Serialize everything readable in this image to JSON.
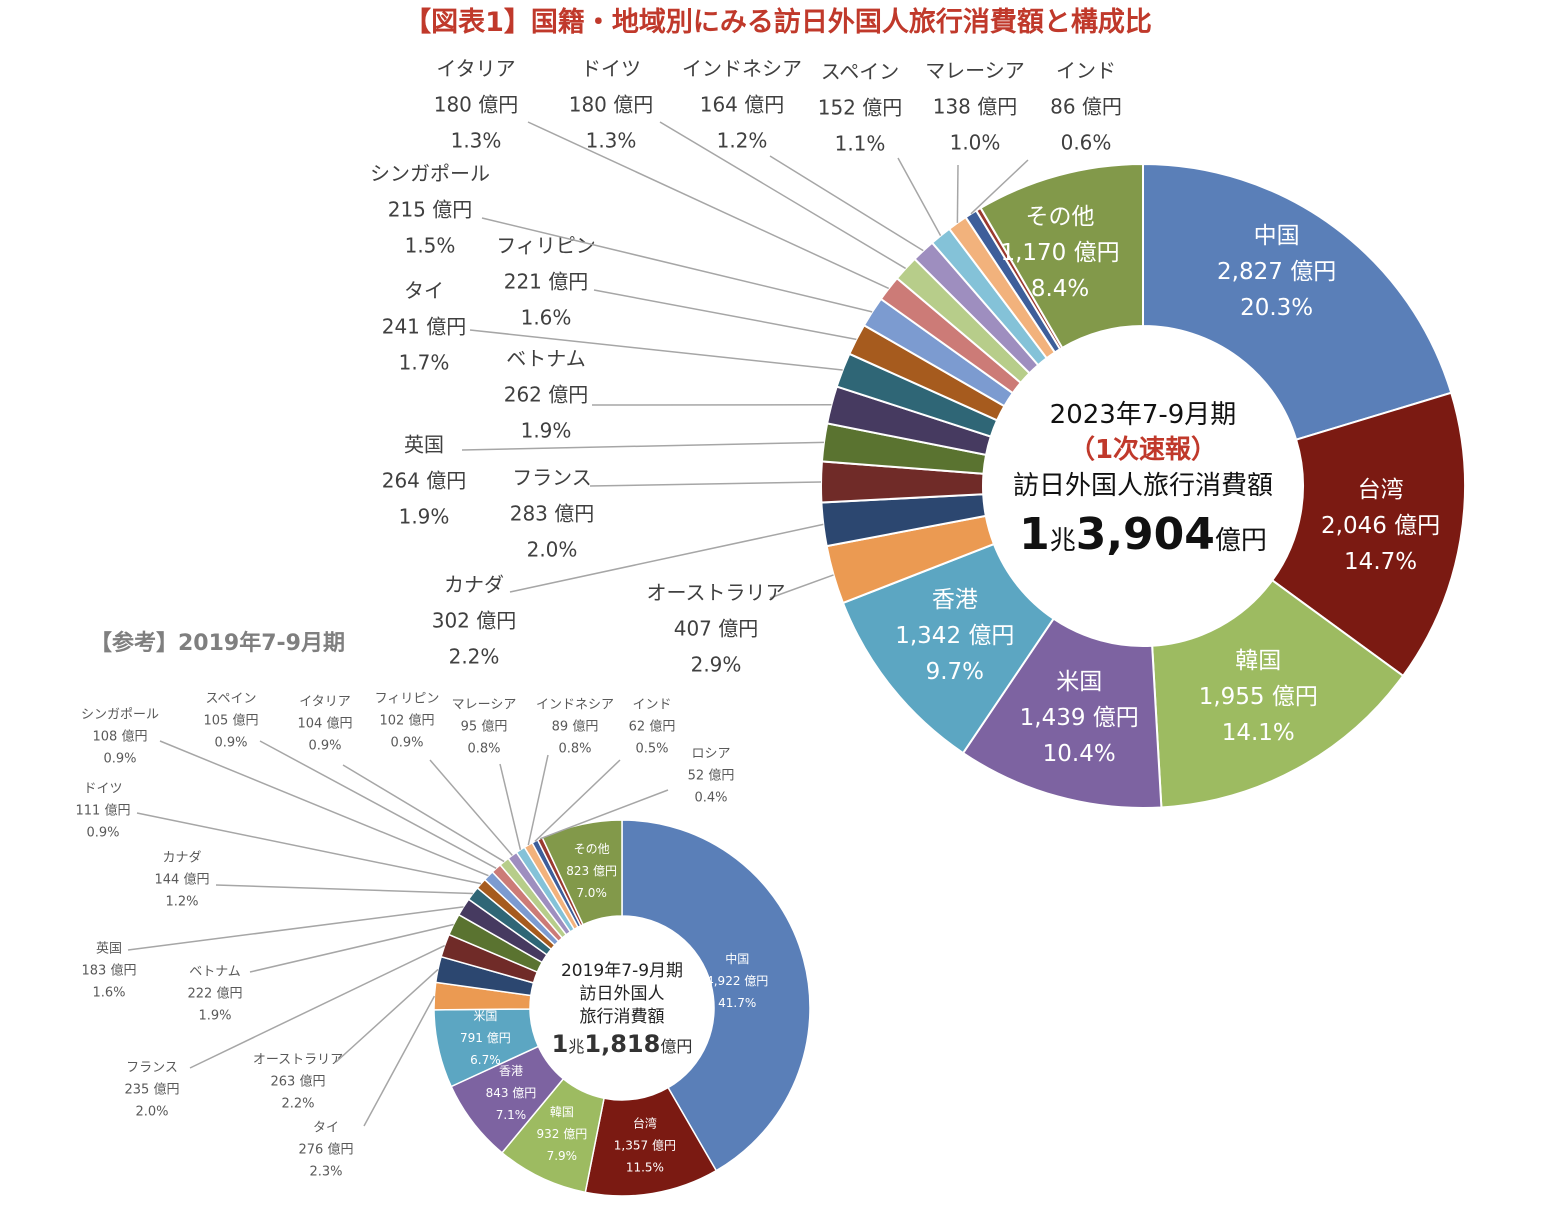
{
  "header": {
    "title": "【図表1】国籍・地域別にみる訪日外国人旅行消費額と構成比",
    "ref_title": "【参考】2019年7-9月期"
  },
  "chart_data": [
    {
      "type": "donut",
      "unit": "億円",
      "center": {
        "period": "2023年7-9月期",
        "note": "（1次速報）",
        "caption": "訪日外国人旅行消費額",
        "total_big1": "1",
        "total_unit1": "兆",
        "total_big2": "3,904",
        "total_unit2": "億円"
      },
      "slices": [
        {
          "name": "中国",
          "value": 2827,
          "value_label": "2,827 億円",
          "pct": "20.3%",
          "color": "#5a7fb8"
        },
        {
          "name": "台湾",
          "value": 2046,
          "value_label": "2,046 億円",
          "pct": "14.7%",
          "color": "#7b1a12"
        },
        {
          "name": "韓国",
          "value": 1955,
          "value_label": "1,955 億円",
          "pct": "14.1%",
          "color": "#9dbb61"
        },
        {
          "name": "米国",
          "value": 1439,
          "value_label": "1,439 億円",
          "pct": "10.4%",
          "color": "#7d63a1"
        },
        {
          "name": "香港",
          "value": 1342,
          "value_label": "1,342 億円",
          "pct": "9.7%",
          "color": "#5ca6c2"
        },
        {
          "name": "オーストラリア",
          "value": 407,
          "value_label": "407 億円",
          "pct": "2.9%",
          "color": "#eb9a52"
        },
        {
          "name": "カナダ",
          "value": 302,
          "value_label": "302 億円",
          "pct": "2.2%",
          "color": "#2c4770"
        },
        {
          "name": "フランス",
          "value": 283,
          "value_label": "283 億円",
          "pct": "2.0%",
          "color": "#702b28"
        },
        {
          "name": "英国",
          "value": 264,
          "value_label": "264 億円",
          "pct": "1.9%",
          "color": "#5a7330"
        },
        {
          "name": "ベトナム",
          "value": 262,
          "value_label": "262 億円",
          "pct": "1.9%",
          "color": "#463a60"
        },
        {
          "name": "タイ",
          "value": 241,
          "value_label": "241 億円",
          "pct": "1.7%",
          "color": "#2f6676"
        },
        {
          "name": "フィリピン",
          "value": 221,
          "value_label": "221 億円",
          "pct": "1.6%",
          "color": "#a65b1e"
        },
        {
          "name": "シンガポール",
          "value": 215,
          "value_label": "215 億円",
          "pct": "1.5%",
          "color": "#7c9bd0"
        },
        {
          "name": "イタリア",
          "value": 180,
          "value_label": "180 億円",
          "pct": "1.3%",
          "color": "#cc7b77"
        },
        {
          "name": "ドイツ",
          "value": 180,
          "value_label": "180 億円",
          "pct": "1.3%",
          "color": "#b7cd8a"
        },
        {
          "name": "インドネシア",
          "value": 164,
          "value_label": "164 億円",
          "pct": "1.2%",
          "color": "#9e8ebf"
        },
        {
          "name": "スペイン",
          "value": 152,
          "value_label": "152 億円",
          "pct": "1.1%",
          "color": "#84c2d8"
        },
        {
          "name": "マレーシア",
          "value": 138,
          "value_label": "138 億円",
          "pct": "1.0%",
          "color": "#f2b27c"
        },
        {
          "name": "インド",
          "value": 86,
          "value_label": "86 億円",
          "pct": "0.6%",
          "color": "#3e5e9a"
        },
        {
          "name": "",
          "value": 35,
          "value_label": "",
          "pct": "",
          "color": "#9a3a30"
        },
        {
          "name": "その他",
          "value": 1170,
          "value_label": "1,170 億円",
          "pct": "8.4%",
          "color": "#82994a"
        }
      ]
    },
    {
      "type": "donut",
      "unit": "億円",
      "center": {
        "period": "2019年7-9月期",
        "caption1": "訪日外国人",
        "caption2": "旅行消費額",
        "total_big1": "1",
        "total_unit1": "兆",
        "total_big2": "1,818",
        "total_unit2": "億円"
      },
      "slices": [
        {
          "name": "中国",
          "value": 4922,
          "value_label": "4,922 億円",
          "pct": "41.7%",
          "color": "#5a7fb8"
        },
        {
          "name": "台湾",
          "value": 1357,
          "value_label": "1,357 億円",
          "pct": "11.5%",
          "color": "#7b1a12"
        },
        {
          "name": "韓国",
          "value": 932,
          "value_label": "932 億円",
          "pct": "7.9%",
          "color": "#9dbb61"
        },
        {
          "name": "香港",
          "value": 843,
          "value_label": "843 億円",
          "pct": "7.1%",
          "color": "#7d63a1"
        },
        {
          "name": "米国",
          "value": 791,
          "value_label": "791 億円",
          "pct": "6.7%",
          "color": "#5ca6c2"
        },
        {
          "name": "タイ",
          "value": 276,
          "value_label": "276 億円",
          "pct": "2.3%",
          "color": "#eb9a52"
        },
        {
          "name": "オーストラリア",
          "value": 263,
          "value_label": "263 億円",
          "pct": "2.2%",
          "color": "#2c4770"
        },
        {
          "name": "フランス",
          "value": 235,
          "value_label": "235 億円",
          "pct": "2.0%",
          "color": "#702b28"
        },
        {
          "name": "ベトナム",
          "value": 222,
          "value_label": "222 億円",
          "pct": "1.9%",
          "color": "#5a7330"
        },
        {
          "name": "英国",
          "value": 183,
          "value_label": "183 億円",
          "pct": "1.6%",
          "color": "#463a60"
        },
        {
          "name": "カナダ",
          "value": 144,
          "value_label": "144 億円",
          "pct": "1.2%",
          "color": "#2f6676"
        },
        {
          "name": "ドイツ",
          "value": 111,
          "value_label": "111 億円",
          "pct": "0.9%",
          "color": "#a65b1e"
        },
        {
          "name": "シンガポール",
          "value": 108,
          "value_label": "108 億円",
          "pct": "0.9%",
          "color": "#7c9bd0"
        },
        {
          "name": "スペイン",
          "value": 105,
          "value_label": "105 億円",
          "pct": "0.9%",
          "color": "#cc7b77"
        },
        {
          "name": "イタリア",
          "value": 104,
          "value_label": "104 億円",
          "pct": "0.9%",
          "color": "#b7cd8a"
        },
        {
          "name": "フィリピン",
          "value": 102,
          "value_label": "102 億円",
          "pct": "0.9%",
          "color": "#9e8ebf"
        },
        {
          "name": "マレーシア",
          "value": 95,
          "value_label": "95 億円",
          "pct": "0.8%",
          "color": "#84c2d8"
        },
        {
          "name": "インドネシア",
          "value": 89,
          "value_label": "89 億円",
          "pct": "0.8%",
          "color": "#f2b27c"
        },
        {
          "name": "インド",
          "value": 62,
          "value_label": "62 億円",
          "pct": "0.5%",
          "color": "#3e5e9a"
        },
        {
          "name": "ロシア",
          "value": 52,
          "value_label": "52 億円",
          "pct": "0.4%",
          "color": "#9a3a30"
        },
        {
          "name": "その他",
          "value": 823,
          "value_label": "823 億円",
          "pct": "7.0%",
          "color": "#82994a"
        }
      ]
    }
  ]
}
